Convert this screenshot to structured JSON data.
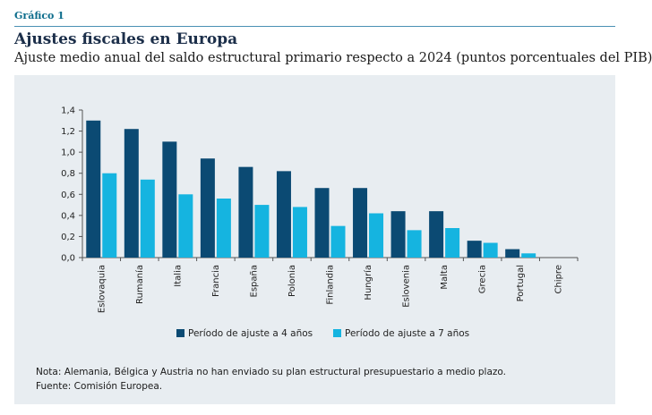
{
  "figure": {
    "label": "Gráfico 1",
    "title": "Ajustes fiscales en Europa",
    "subtitle": "Ajuste medio anual del saldo estructural primario respecto a 2024 (puntos porcentuales del PIB)",
    "note": "Nota: Alemania, Bélgica y Austria no han enviado su plan estructural presupuestario a medio plazo.",
    "source": "Fuente: Comisión Europea."
  },
  "colors": {
    "series1": "#0b4a73",
    "series2": "#15b4e0",
    "accent": "#0d6d8c",
    "panel": "#e8edf1"
  },
  "chart_data": {
    "type": "bar",
    "categories": [
      "Eslovaquia",
      "Rumanía",
      "Italia",
      "Francia",
      "España",
      "Polonia",
      "Finlandia",
      "Hungría",
      "Eslovenia",
      "Malta",
      "Grecia",
      "Portugal",
      "Chipre"
    ],
    "series": [
      {
        "name": "Período de ajuste a 4 años",
        "values": [
          1.3,
          1.22,
          1.1,
          0.94,
          0.86,
          0.82,
          0.66,
          0.66,
          0.44,
          0.44,
          0.16,
          0.08,
          0.0
        ]
      },
      {
        "name": "Período de ajuste a 7 años",
        "values": [
          0.8,
          0.74,
          0.6,
          0.56,
          0.5,
          0.48,
          0.3,
          0.42,
          0.26,
          0.28,
          0.14,
          0.04,
          0.0
        ]
      }
    ],
    "yticks": [
      "0,0",
      "0,2",
      "0,4",
      "0,6",
      "0,8",
      "1,0",
      "1,2",
      "1,4"
    ],
    "ylim": [
      0,
      1.4
    ],
    "legend_position": "bottom",
    "grid": false
  }
}
